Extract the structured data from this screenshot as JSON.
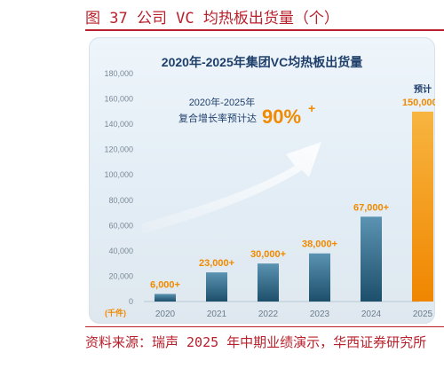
{
  "figure_caption": "图 37 公司 VC 均热板出货量（个）",
  "source_note": "资料来源：瑞声 2025 年中期业绩演示，华西证券研究所",
  "colors": {
    "accent_red": "#b8202b",
    "bar_blue": "#2f6c8c",
    "bar_orange": "#f39a1c",
    "label_orange": "#f08a00",
    "title_blue": "#1f3f6b"
  },
  "chart_data": {
    "type": "bar",
    "title": "2020年-2025年集团VC均热板出货量",
    "categories": [
      "2020",
      "2021",
      "2022",
      "2023",
      "2024",
      "2025"
    ],
    "values": [
      6000,
      23000,
      30000,
      38000,
      67000,
      150000
    ],
    "value_labels": [
      "6,000+",
      "23,000+",
      "30,000+",
      "38,000+",
      "67,000+",
      "150,000+"
    ],
    "forecast_index": 5,
    "forecast_label": "预计",
    "yticks": [
      "0",
      "20,000",
      "40,000",
      "60,000",
      "80,000",
      "100,000",
      "120,000",
      "140,000",
      "160,000",
      "180,000"
    ],
    "ylim": [
      0,
      180000
    ],
    "unit_label": "(千件)",
    "cagr_text_line1": "2020年-2025年",
    "cagr_text_line2": "复合增长率预计达",
    "cagr_value": "90%",
    "cagr_plus": "+",
    "grid": false
  }
}
